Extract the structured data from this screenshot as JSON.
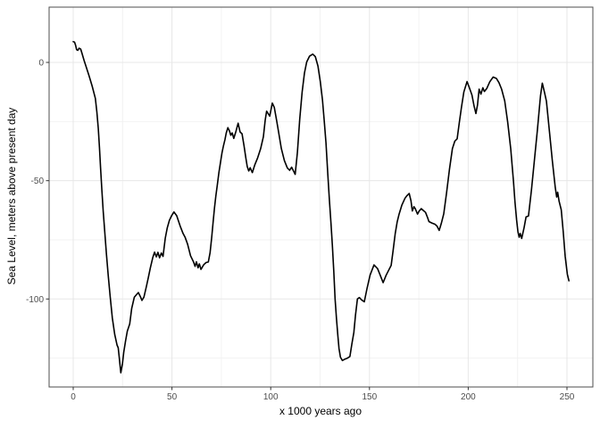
{
  "figure": {
    "background": "#ffffff",
    "panel_border_color": "#4d4d4d",
    "grid_major_color": "#e7e7e7",
    "grid_minor_color": "#f2f2f2",
    "line_color": "#000000",
    "tick_color": "#333333",
    "tick_label_color": "#4d4d4d"
  },
  "chart_data": {
    "type": "line",
    "title": "",
    "xlabel": "x 1000 years ago",
    "ylabel": "Sea Level, meters above present day",
    "x_tick_labels": [
      "0",
      "50",
      "100",
      "150",
      "200",
      "250"
    ],
    "x_ticks": [
      0,
      50,
      100,
      150,
      200,
      250
    ],
    "x_minor_ticks": [
      25,
      75,
      125,
      175,
      225
    ],
    "y_tick_labels": [
      "0",
      "-50",
      "-100"
    ],
    "y_ticks": [
      0,
      -50,
      -100
    ],
    "y_minor_ticks": [
      -25,
      -75,
      -125
    ],
    "xlim": [
      -12.2,
      263.1
    ],
    "ylim": [
      -137.3,
      23.4
    ],
    "grid": true,
    "legend": "none",
    "series": [
      {
        "name": "sea_level",
        "points": [
          [
            0,
            8.8
          ],
          [
            0.7,
            8.6
          ],
          [
            1.2,
            7.2
          ],
          [
            1.7,
            5.4
          ],
          [
            2.3,
            5.1
          ],
          [
            3,
            6
          ],
          [
            3.8,
            5.6
          ],
          [
            4.5,
            3.6
          ],
          [
            5.5,
            0.8
          ],
          [
            6.6,
            -2
          ],
          [
            8,
            -5.6
          ],
          [
            9.6,
            -10
          ],
          [
            11.2,
            -15.2
          ],
          [
            12,
            -21
          ],
          [
            12.7,
            -28
          ],
          [
            13.3,
            -36
          ],
          [
            13.9,
            -45
          ],
          [
            14.5,
            -54
          ],
          [
            15.2,
            -63
          ],
          [
            16,
            -72
          ],
          [
            16.8,
            -81
          ],
          [
            17.7,
            -90
          ],
          [
            18.7,
            -99
          ],
          [
            19.8,
            -108
          ],
          [
            21,
            -115
          ],
          [
            22.2,
            -119.5
          ],
          [
            22.8,
            -120.6
          ],
          [
            23.3,
            -124.5
          ],
          [
            24.1,
            -131.2
          ],
          [
            24.9,
            -127.5
          ],
          [
            25.6,
            -122.5
          ],
          [
            26.5,
            -117.8
          ],
          [
            27.4,
            -113.6
          ],
          [
            28.6,
            -110.5
          ],
          [
            29.6,
            -104
          ],
          [
            30.9,
            -99.3
          ],
          [
            32,
            -98.2
          ],
          [
            33,
            -97.3
          ],
          [
            34,
            -99
          ],
          [
            34.8,
            -100.6
          ],
          [
            35.8,
            -99.2
          ],
          [
            37,
            -95
          ],
          [
            38,
            -91
          ],
          [
            39,
            -87
          ],
          [
            40.3,
            -82.5
          ],
          [
            41.2,
            -80.2
          ],
          [
            42.1,
            -82.2
          ],
          [
            42.9,
            -80.3
          ],
          [
            43.7,
            -82.6
          ],
          [
            44.6,
            -80.6
          ],
          [
            45.5,
            -82
          ],
          [
            46.6,
            -74.3
          ],
          [
            47.6,
            -70
          ],
          [
            48.7,
            -66.8
          ],
          [
            49.8,
            -64.8
          ],
          [
            51,
            -63.2
          ],
          [
            52.4,
            -64.8
          ],
          [
            54.1,
            -69.1
          ],
          [
            55.6,
            -72.3
          ],
          [
            56.7,
            -74
          ],
          [
            57.9,
            -76.8
          ],
          [
            59.4,
            -81.7
          ],
          [
            60.9,
            -84.3
          ],
          [
            61.7,
            -86.2
          ],
          [
            62.4,
            -84.3
          ],
          [
            63.2,
            -86.8
          ],
          [
            63.9,
            -85.2
          ],
          [
            64.7,
            -87.5
          ],
          [
            66.1,
            -85.5
          ],
          [
            67.3,
            -84.6
          ],
          [
            68.4,
            -84.4
          ],
          [
            69.3,
            -80.4
          ],
          [
            70.1,
            -74
          ],
          [
            70.8,
            -67.9
          ],
          [
            71.5,
            -61.6
          ],
          [
            72.2,
            -56.6
          ],
          [
            73,
            -51.5
          ],
          [
            73.8,
            -46.5
          ],
          [
            74.6,
            -42.1
          ],
          [
            75.3,
            -38.3
          ],
          [
            76.1,
            -35.2
          ],
          [
            76.8,
            -32.7
          ],
          [
            77.5,
            -29.8
          ],
          [
            78.3,
            -27.6
          ],
          [
            79.1,
            -29
          ],
          [
            79.8,
            -30.8
          ],
          [
            80.5,
            -29.8
          ],
          [
            81.3,
            -32.1
          ],
          [
            82.3,
            -29.5
          ],
          [
            83.5,
            -25.7
          ],
          [
            84.5,
            -29.4
          ],
          [
            85.5,
            -30.2
          ],
          [
            86.5,
            -35.2
          ],
          [
            87.4,
            -40.3
          ],
          [
            88.1,
            -44
          ],
          [
            88.9,
            -45.9
          ],
          [
            89.6,
            -44.5
          ],
          [
            90.7,
            -46.6
          ],
          [
            91.9,
            -43.4
          ],
          [
            93.4,
            -40.3
          ],
          [
            94.9,
            -36.5
          ],
          [
            96.3,
            -31.4
          ],
          [
            97.2,
            -24.5
          ],
          [
            97.9,
            -20.6
          ],
          [
            99,
            -22
          ],
          [
            99.5,
            -22.7
          ],
          [
            100.8,
            -17.2
          ],
          [
            101.8,
            -19
          ],
          [
            103,
            -24.5
          ],
          [
            103.9,
            -28.9
          ],
          [
            105.4,
            -36.4
          ],
          [
            106.9,
            -41.5
          ],
          [
            108.4,
            -44.6
          ],
          [
            109.6,
            -45.6
          ],
          [
            110.6,
            -44.3
          ],
          [
            111.5,
            -45.8
          ],
          [
            112.4,
            -47.3
          ],
          [
            113.5,
            -38
          ],
          [
            114.7,
            -24
          ],
          [
            115.9,
            -12.5
          ],
          [
            117.1,
            -4.5
          ],
          [
            118.2,
            0.2
          ],
          [
            119.6,
            2.6
          ],
          [
            121.3,
            3.5
          ],
          [
            122.6,
            2.4
          ],
          [
            123.9,
            -1.5
          ],
          [
            125.1,
            -8
          ],
          [
            126.2,
            -16
          ],
          [
            127.1,
            -24.5
          ],
          [
            128,
            -34
          ],
          [
            128.9,
            -47
          ],
          [
            129.7,
            -58
          ],
          [
            130.5,
            -68
          ],
          [
            131.2,
            -77
          ],
          [
            131.9,
            -88
          ],
          [
            132.6,
            -100
          ],
          [
            133.3,
            -108.5
          ],
          [
            134,
            -115.5
          ],
          [
            134.6,
            -121
          ],
          [
            135.3,
            -124.6
          ],
          [
            136.3,
            -126
          ],
          [
            137.6,
            -125.4
          ],
          [
            138.9,
            -125
          ],
          [
            140.1,
            -124.3
          ],
          [
            141.1,
            -119
          ],
          [
            142.1,
            -114.2
          ],
          [
            142.9,
            -107
          ],
          [
            143.9,
            -100
          ],
          [
            144.9,
            -99.4
          ],
          [
            145.9,
            -100.3
          ],
          [
            147.4,
            -101.2
          ],
          [
            148.8,
            -95.5
          ],
          [
            150.3,
            -89.9
          ],
          [
            152.3,
            -85.6
          ],
          [
            154.1,
            -87.2
          ],
          [
            155.6,
            -90.3
          ],
          [
            156.9,
            -93.1
          ],
          [
            158.4,
            -90
          ],
          [
            159.8,
            -87.7
          ],
          [
            161,
            -85.8
          ],
          [
            162,
            -79.5
          ],
          [
            163,
            -72.5
          ],
          [
            164,
            -67.5
          ],
          [
            165,
            -64.1
          ],
          [
            166.4,
            -60.3
          ],
          [
            168,
            -57.4
          ],
          [
            169,
            -56.3
          ],
          [
            170.1,
            -55.4
          ],
          [
            171,
            -58.5
          ],
          [
            171.7,
            -62.8
          ],
          [
            172.5,
            -61
          ],
          [
            173.2,
            -61.8
          ],
          [
            174.3,
            -64.1
          ],
          [
            175.2,
            -62.8
          ],
          [
            176.2,
            -61.8
          ],
          [
            177.3,
            -62.6
          ],
          [
            178.4,
            -63.4
          ],
          [
            179.4,
            -65.5
          ],
          [
            180.1,
            -67.3
          ],
          [
            181.6,
            -67.9
          ],
          [
            183.2,
            -68.4
          ],
          [
            184.2,
            -69.2
          ],
          [
            185.3,
            -71
          ],
          [
            186.4,
            -68
          ],
          [
            187.6,
            -64
          ],
          [
            189,
            -55.3
          ],
          [
            190.5,
            -45.2
          ],
          [
            192,
            -36.4
          ],
          [
            193.2,
            -33.3
          ],
          [
            194.4,
            -32.3
          ],
          [
            195.5,
            -25.5
          ],
          [
            196.6,
            -18.8
          ],
          [
            197.8,
            -12.5
          ],
          [
            199.4,
            -8.1
          ],
          [
            200.5,
            -10.5
          ],
          [
            201.9,
            -13.8
          ],
          [
            203,
            -18.5
          ],
          [
            203.9,
            -21.6
          ],
          [
            204.7,
            -18
          ],
          [
            205.5,
            -11.3
          ],
          [
            206.4,
            -13.4
          ],
          [
            207.4,
            -10.7
          ],
          [
            208.2,
            -12.3
          ],
          [
            209.4,
            -11
          ],
          [
            210.9,
            -8.2
          ],
          [
            212.6,
            -6.2
          ],
          [
            214.3,
            -6.8
          ],
          [
            215.6,
            -8.6
          ],
          [
            216.9,
            -11.3
          ],
          [
            218.5,
            -16.3
          ],
          [
            220,
            -25.2
          ],
          [
            221.5,
            -36.4
          ],
          [
            222.9,
            -50.3
          ],
          [
            223.7,
            -59.1
          ],
          [
            224.5,
            -66.6
          ],
          [
            225.2,
            -71.6
          ],
          [
            225.8,
            -73.9
          ],
          [
            226.3,
            -72.3
          ],
          [
            227.1,
            -74.4
          ],
          [
            228.3,
            -69.8
          ],
          [
            229.3,
            -65.3
          ],
          [
            230.5,
            -64.9
          ],
          [
            232,
            -54
          ],
          [
            233.5,
            -41.5
          ],
          [
            235,
            -28.9
          ],
          [
            235.8,
            -21.4
          ],
          [
            236.6,
            -14
          ],
          [
            237.5,
            -8.8
          ],
          [
            238.6,
            -12.6
          ],
          [
            239.6,
            -16.4
          ],
          [
            241.1,
            -28.9
          ],
          [
            242.6,
            -41.5
          ],
          [
            244.1,
            -52.9
          ],
          [
            244.8,
            -56.9
          ],
          [
            245.3,
            -54.9
          ],
          [
            246,
            -58.7
          ],
          [
            247.1,
            -62.3
          ],
          [
            248.1,
            -71.5
          ],
          [
            249.1,
            -82
          ],
          [
            250.2,
            -89.5
          ],
          [
            251,
            -92.3
          ]
        ]
      }
    ]
  }
}
